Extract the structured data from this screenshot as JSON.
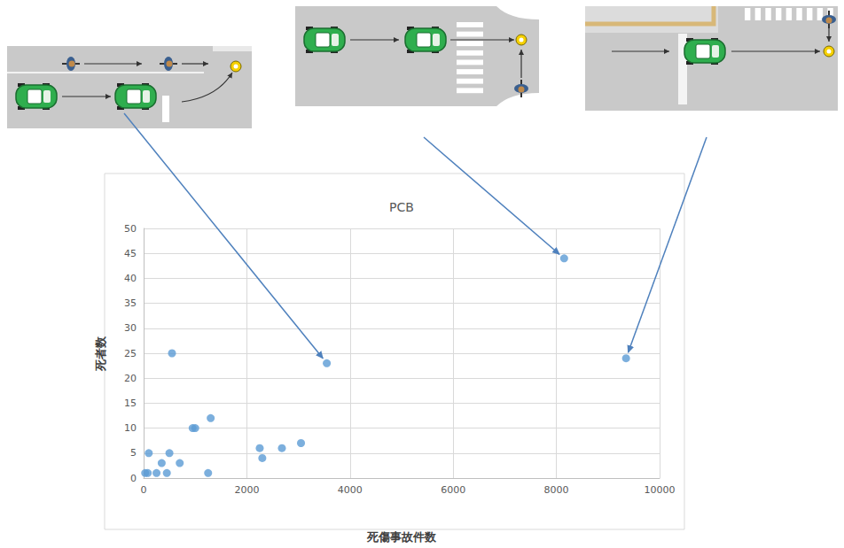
{
  "chart_data": {
    "type": "scatter",
    "title": "PCB",
    "x_label": "死傷事故件数",
    "y_label": "死者数",
    "x": [
      30,
      80,
      100,
      250,
      350,
      450,
      500,
      550,
      700,
      950,
      1000,
      1250,
      1300,
      2250,
      2300,
      2680,
      3050,
      3550,
      8150,
      9350
    ],
    "values": [
      1,
      1,
      5,
      1,
      3,
      1,
      5,
      25,
      3,
      10,
      10,
      1,
      12,
      6,
      4,
      6,
      7,
      23,
      44,
      24
    ],
    "color": "#5b9bd5",
    "marker": "circle",
    "xlim": [
      0,
      10000
    ],
    "xticks": [
      0,
      2000,
      4000,
      6000,
      8000,
      10000
    ],
    "ylim": [
      0,
      50
    ],
    "yticks": [
      0,
      5,
      10,
      15,
      20,
      25,
      30,
      35,
      40,
      45,
      50
    ],
    "grid": true
  }
}
